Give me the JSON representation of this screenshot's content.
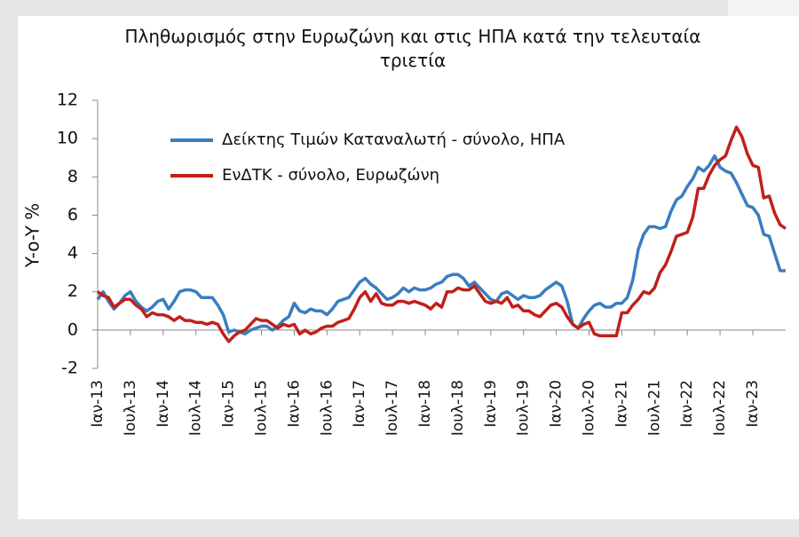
{
  "chart_data": {
    "type": "line",
    "title": "Πληθωρισμός στην Ευρωζώνη και στις ΗΠΑ κατά την τελευταία τριετία",
    "y_label": "Y-o-Y %",
    "legend": "upper left",
    "ylim": [
      -2,
      12
    ],
    "yticks": [
      -2,
      0,
      2,
      4,
      6,
      8,
      10,
      12
    ],
    "categories": [
      "Ιαν-13",
      null,
      null,
      null,
      null,
      null,
      "Ιουλ-13",
      null,
      null,
      null,
      null,
      null,
      "Ιαν-14",
      null,
      null,
      null,
      null,
      null,
      "Ιουλ-14",
      null,
      null,
      null,
      null,
      null,
      "Ιαν-15",
      null,
      null,
      null,
      null,
      null,
      "Ιουλ-15",
      null,
      null,
      null,
      null,
      null,
      "Ιαν-16",
      null,
      null,
      null,
      null,
      null,
      "Ιουλ-16",
      null,
      null,
      null,
      null,
      null,
      "Ιαν-17",
      null,
      null,
      null,
      null,
      null,
      "Ιουλ-17",
      null,
      null,
      null,
      null,
      null,
      "Ιαν-18",
      null,
      null,
      null,
      null,
      null,
      "Ιουλ-18",
      null,
      null,
      null,
      null,
      null,
      "Ιαν-19",
      null,
      null,
      null,
      null,
      null,
      "Ιουλ-19",
      null,
      null,
      null,
      null,
      null,
      "Ιαν-20",
      null,
      null,
      null,
      null,
      null,
      "Ιουλ-20",
      null,
      null,
      null,
      null,
      null,
      "Ιαν-21",
      null,
      null,
      null,
      null,
      null,
      "Ιουλ-21",
      null,
      null,
      null,
      null,
      null,
      "Ιαν-22",
      null,
      null,
      null,
      null,
      null,
      "Ιουλ-22",
      null,
      null,
      null,
      null,
      null,
      "Ιαν-23",
      null,
      null,
      null,
      null,
      null,
      null
    ],
    "series": [
      {
        "name": "Δείκτης Τιμών Καταναλωτή - σύνολο, ΗΠΑ",
        "color": "#3a7dc0",
        "values": [
          1.6,
          2.0,
          1.5,
          1.1,
          1.4,
          1.8,
          2.0,
          1.5,
          1.2,
          1.0,
          1.2,
          1.5,
          1.6,
          1.1,
          1.5,
          2.0,
          2.1,
          2.1,
          2.0,
          1.7,
          1.7,
          1.7,
          1.3,
          0.8,
          -0.1,
          0.0,
          -0.1,
          -0.2,
          0.0,
          0.1,
          0.2,
          0.2,
          0.0,
          0.2,
          0.5,
          0.7,
          1.4,
          1.0,
          0.9,
          1.1,
          1.0,
          1.0,
          0.8,
          1.1,
          1.5,
          1.6,
          1.7,
          2.1,
          2.5,
          2.7,
          2.4,
          2.2,
          1.9,
          1.6,
          1.7,
          1.9,
          2.2,
          2.0,
          2.2,
          2.1,
          2.1,
          2.2,
          2.4,
          2.5,
          2.8,
          2.9,
          2.9,
          2.7,
          2.3,
          2.5,
          2.2,
          1.9,
          1.6,
          1.5,
          1.9,
          2.0,
          1.8,
          1.6,
          1.8,
          1.7,
          1.7,
          1.8,
          2.1,
          2.3,
          2.5,
          2.3,
          1.5,
          0.3,
          0.1,
          0.6,
          1.0,
          1.3,
          1.4,
          1.2,
          1.2,
          1.4,
          1.4,
          1.7,
          2.6,
          4.2,
          5.0,
          5.4,
          5.4,
          5.3,
          5.4,
          6.2,
          6.8,
          7.0,
          7.5,
          7.9,
          8.5,
          8.3,
          8.6,
          9.1,
          8.5,
          8.3,
          8.2,
          7.7,
          7.1,
          6.5,
          6.4,
          6.0,
          5.0,
          4.9,
          4.0,
          3.1,
          3.1
        ]
      },
      {
        "name": "ΕνΔΤΚ - σύνολο, Ευρωζώνη",
        "color": "#c0201a",
        "values": [
          2.0,
          1.8,
          1.7,
          1.2,
          1.4,
          1.6,
          1.6,
          1.3,
          1.1,
          0.7,
          0.9,
          0.8,
          0.8,
          0.7,
          0.5,
          0.7,
          0.5,
          0.5,
          0.4,
          0.4,
          0.3,
          0.4,
          0.3,
          -0.2,
          -0.6,
          -0.3,
          -0.1,
          0.0,
          0.3,
          0.6,
          0.5,
          0.5,
          0.3,
          0.1,
          0.3,
          0.2,
          0.3,
          -0.2,
          0.0,
          -0.2,
          -0.1,
          0.1,
          0.2,
          0.2,
          0.4,
          0.5,
          0.6,
          1.1,
          1.7,
          2.0,
          1.5,
          1.9,
          1.4,
          1.3,
          1.3,
          1.5,
          1.5,
          1.4,
          1.5,
          1.4,
          1.3,
          1.1,
          1.4,
          1.2,
          2.0,
          2.0,
          2.2,
          2.1,
          2.1,
          2.3,
          1.9,
          1.5,
          1.4,
          1.5,
          1.4,
          1.7,
          1.2,
          1.3,
          1.0,
          1.0,
          0.8,
          0.7,
          1.0,
          1.3,
          1.4,
          1.2,
          0.7,
          0.3,
          0.1,
          0.3,
          0.4,
          -0.2,
          -0.3,
          -0.3,
          -0.3,
          -0.3,
          0.9,
          0.9,
          1.3,
          1.6,
          2.0,
          1.9,
          2.2,
          3.0,
          3.4,
          4.1,
          4.9,
          5.0,
          5.1,
          5.9,
          7.4,
          7.4,
          8.1,
          8.6,
          8.9,
          9.1,
          9.9,
          10.6,
          10.1,
          9.2,
          8.6,
          8.5,
          6.9,
          7.0,
          6.1,
          5.5,
          5.3
        ]
      }
    ]
  }
}
